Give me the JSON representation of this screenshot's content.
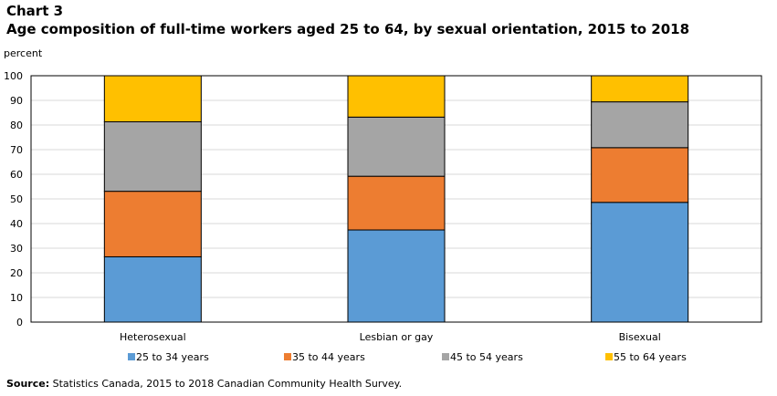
{
  "header": {
    "chart_number": "Chart 3",
    "title": "Age composition of full-time workers aged 25 to 64, by sexual orientation, 2015 to 2018"
  },
  "source": {
    "label": "Source:",
    "text": " Statistics Canada, 2015 to 2018 Canadian Community Health Survey."
  },
  "colors": {
    "25 to 34 years": "#5b9bd5",
    "35 to 44 years": "#ed7d31",
    "45 to 54 years": "#a5a5a5",
    "55 to 64 years": "#ffc000"
  },
  "chart_data": {
    "type": "bar",
    "stacked": true,
    "title": "Age composition of full-time workers aged 25 to 64, by sexual orientation, 2015 to 2018",
    "xlabel": "",
    "ylabel": "percent",
    "ylim": [
      0,
      100
    ],
    "yticks": [
      0,
      10,
      20,
      30,
      40,
      50,
      60,
      70,
      80,
      90,
      100
    ],
    "grid": true,
    "legend_position": "bottom",
    "categories": [
      "Heterosexual",
      "Lesbian or gay",
      "Bisexual"
    ],
    "series": [
      {
        "name": "25 to 34 years",
        "values": [
          26.5,
          37.4,
          48.6
        ]
      },
      {
        "name": "35 to 44 years",
        "values": [
          26.6,
          21.8,
          22.2
        ]
      },
      {
        "name": "45 to 54 years",
        "values": [
          28.2,
          24.0,
          18.6
        ]
      },
      {
        "name": "55 to 64 years",
        "values": [
          18.7,
          16.8,
          10.6
        ]
      }
    ]
  }
}
